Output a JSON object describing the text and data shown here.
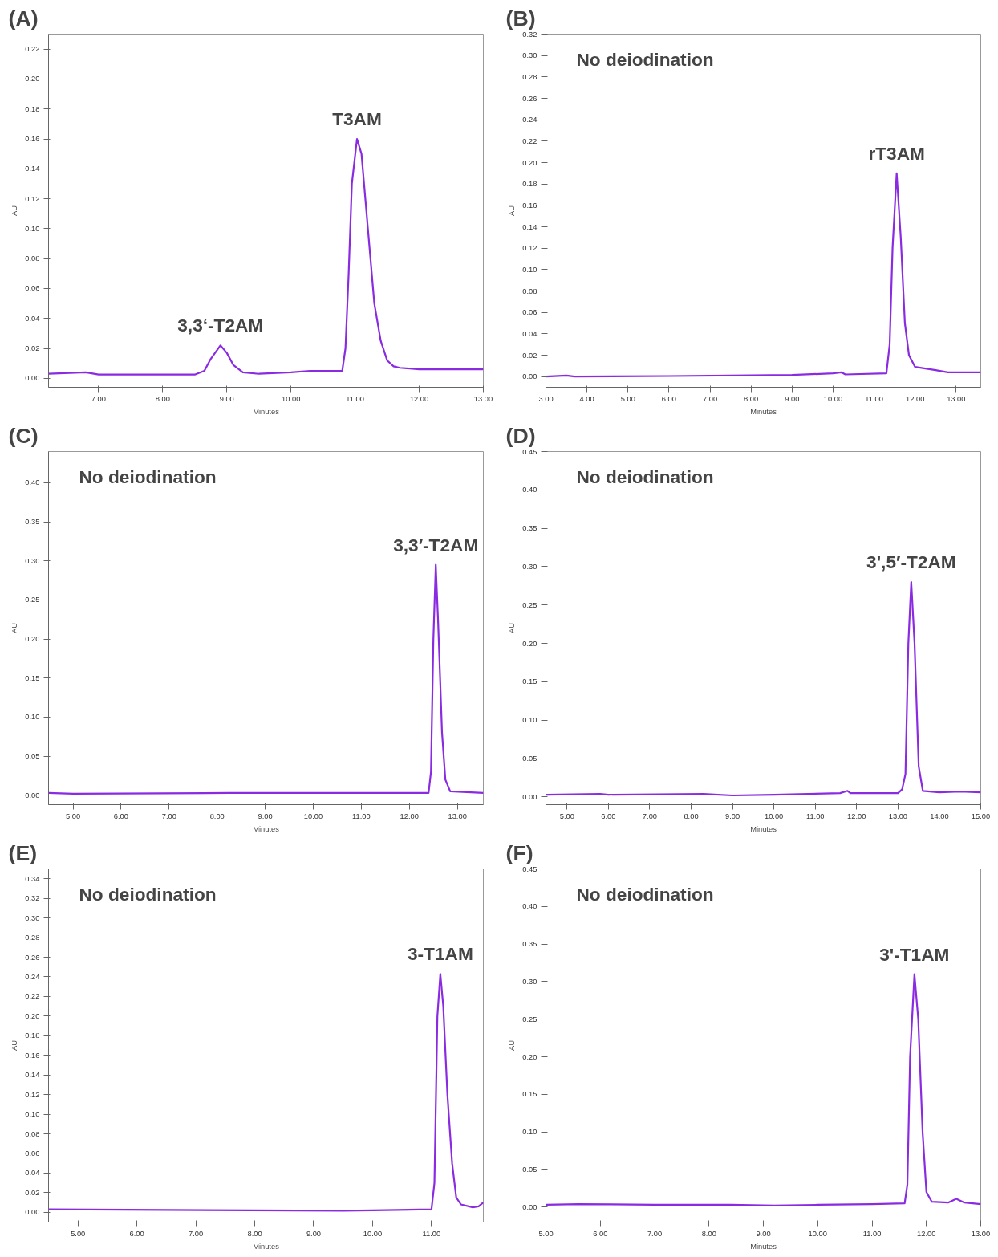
{
  "chart_data": [
    {
      "type": "line",
      "title": "(A)",
      "xlabel": "Minutes",
      "ylabel": "AU",
      "color": "#8a2be2",
      "grid": false,
      "xlim": [
        6.22,
        13.0
      ],
      "ylim": [
        -0.006,
        0.23
      ],
      "xticks": [
        {
          "value": 7,
          "label": "7.00"
        },
        {
          "value": 8,
          "label": "8.00"
        },
        {
          "value": 9,
          "label": "9.00"
        },
        {
          "value": 10,
          "label": "10.00"
        },
        {
          "value": 11,
          "label": "11.00"
        },
        {
          "value": 12,
          "label": "12.00"
        },
        {
          "value": 13,
          "label": "13.00"
        }
      ],
      "yticks": [
        {
          "value": 0,
          "label": "0.00"
        },
        {
          "value": 0.02,
          "label": "0.02"
        },
        {
          "value": 0.04,
          "label": "0.04"
        },
        {
          "value": 0.06,
          "label": "0.06"
        },
        {
          "value": 0.08,
          "label": "0.08"
        },
        {
          "value": 0.1,
          "label": "0.10"
        },
        {
          "value": 0.12,
          "label": "0.12"
        },
        {
          "value": 0.14,
          "label": "0.14"
        },
        {
          "value": 0.16,
          "label": "0.16"
        },
        {
          "value": 0.18,
          "label": "0.18"
        },
        {
          "value": 0.2,
          "label": "0.20"
        },
        {
          "value": 0.22,
          "label": "0.22"
        }
      ],
      "x": [
        6.22,
        6.8,
        7.0,
        8.5,
        8.65,
        8.75,
        8.9,
        9.0,
        9.1,
        9.25,
        9.5,
        10.0,
        10.3,
        10.8,
        10.85,
        10.9,
        10.95,
        11.03,
        11.1,
        11.2,
        11.3,
        11.4,
        11.5,
        11.6,
        11.7,
        12.0,
        13.0
      ],
      "values": [
        0.003,
        0.004,
        0.0025,
        0.0025,
        0.005,
        0.013,
        0.022,
        0.017,
        0.009,
        0.004,
        0.003,
        0.004,
        0.005,
        0.005,
        0.02,
        0.07,
        0.13,
        0.16,
        0.15,
        0.1,
        0.05,
        0.025,
        0.012,
        0.008,
        0.007,
        0.006,
        0.006
      ],
      "annotations": [
        {
          "text": "3,3‘-T2AM",
          "x": 8.9,
          "y": 0.022
        },
        {
          "text": "T3AM",
          "x": 11.03,
          "y": 0.16
        }
      ]
    },
    {
      "type": "line",
      "title": "(B)",
      "xlabel": "Minutes",
      "ylabel": "AU",
      "color": "#8a2be2",
      "grid": false,
      "xlim": [
        3.0,
        13.6
      ],
      "ylim": [
        -0.01,
        0.32
      ],
      "xticks": [
        {
          "value": 3,
          "label": "3.00"
        },
        {
          "value": 4,
          "label": "4.00"
        },
        {
          "value": 5,
          "label": "5.00"
        },
        {
          "value": 6,
          "label": "6.00"
        },
        {
          "value": 7,
          "label": "7.00"
        },
        {
          "value": 8,
          "label": "8.00"
        },
        {
          "value": 9,
          "label": "9.00"
        },
        {
          "value": 10,
          "label": "10.00"
        },
        {
          "value": 11,
          "label": "11.00"
        },
        {
          "value": 12,
          "label": "12.00"
        },
        {
          "value": 13,
          "label": "13.00"
        }
      ],
      "yticks": [
        {
          "value": 0,
          "label": "0.00"
        },
        {
          "value": 0.02,
          "label": "0.02"
        },
        {
          "value": 0.04,
          "label": "0.04"
        },
        {
          "value": 0.06,
          "label": "0.06"
        },
        {
          "value": 0.08,
          "label": "0.08"
        },
        {
          "value": 0.1,
          "label": "0.10"
        },
        {
          "value": 0.12,
          "label": "0.12"
        },
        {
          "value": 0.14,
          "label": "0.14"
        },
        {
          "value": 0.16,
          "label": "0.16"
        },
        {
          "value": 0.18,
          "label": "0.18"
        },
        {
          "value": 0.2,
          "label": "0.20"
        },
        {
          "value": 0.22,
          "label": "0.22"
        },
        {
          "value": 0.24,
          "label": "0.24"
        },
        {
          "value": 0.26,
          "label": "0.26"
        },
        {
          "value": 0.28,
          "label": "0.28"
        },
        {
          "value": 0.3,
          "label": "0.30"
        },
        {
          "value": 0.32,
          "label": "0.32"
        }
      ],
      "x": [
        3.0,
        3.5,
        3.7,
        6.0,
        9.0,
        10.0,
        10.2,
        10.3,
        11.3,
        11.38,
        11.45,
        11.55,
        11.65,
        11.75,
        11.85,
        12.0,
        12.5,
        12.8,
        13.6
      ],
      "values": [
        0.0,
        0.001,
        0.0,
        0.0005,
        0.0015,
        0.003,
        0.004,
        0.002,
        0.003,
        0.03,
        0.12,
        0.19,
        0.13,
        0.05,
        0.02,
        0.009,
        0.006,
        0.004,
        0.004
      ],
      "annotations": [
        "No deiodination",
        {
          "text": "rT3AM",
          "x": 11.55,
          "y": 0.19
        }
      ]
    },
    {
      "type": "line",
      "title": "(C)",
      "xlabel": "Minutes",
      "ylabel": "AU",
      "color": "#8a2be2",
      "grid": false,
      "xlim": [
        4.49,
        13.54
      ],
      "ylim": [
        -0.012,
        0.44
      ],
      "xticks": [
        {
          "value": 5,
          "label": "5.00"
        },
        {
          "value": 6,
          "label": "6.00"
        },
        {
          "value": 7,
          "label": "7.00"
        },
        {
          "value": 8,
          "label": "8.00"
        },
        {
          "value": 9,
          "label": "9.00"
        },
        {
          "value": 10,
          "label": "10.00"
        },
        {
          "value": 11,
          "label": "11.00"
        },
        {
          "value": 12,
          "label": "12.00"
        },
        {
          "value": 13,
          "label": "13.00"
        }
      ],
      "yticks": [
        {
          "value": 0,
          "label": "0.00"
        },
        {
          "value": 0.05,
          "label": "0.05"
        },
        {
          "value": 0.1,
          "label": "0.10"
        },
        {
          "value": 0.15,
          "label": "0.15"
        },
        {
          "value": 0.2,
          "label": "0.20"
        },
        {
          "value": 0.25,
          "label": "0.25"
        },
        {
          "value": 0.3,
          "label": "0.30"
        },
        {
          "value": 0.35,
          "label": "0.35"
        },
        {
          "value": 0.4,
          "label": "0.40"
        }
      ],
      "x": [
        4.49,
        5.0,
        8.25,
        10.0,
        12.4,
        12.45,
        12.5,
        12.55,
        12.6,
        12.68,
        12.75,
        12.85,
        13.54
      ],
      "values": [
        0.003,
        0.002,
        0.003,
        0.003,
        0.003,
        0.03,
        0.2,
        0.295,
        0.22,
        0.08,
        0.02,
        0.005,
        0.003
      ],
      "annotations": [
        "No deiodination",
        {
          "text": "3,3′-T2AM",
          "x": 12.55,
          "y": 0.295
        }
      ]
    },
    {
      "type": "line",
      "title": "(D)",
      "xlabel": "Minutes",
      "ylabel": "AU",
      "color": "#8a2be2",
      "grid": false,
      "xlim": [
        4.49,
        15.0
      ],
      "ylim": [
        -0.01,
        0.45
      ],
      "xticks": [
        {
          "value": 5,
          "label": "5.00"
        },
        {
          "value": 6,
          "label": "6.00"
        },
        {
          "value": 7,
          "label": "7.00"
        },
        {
          "value": 8,
          "label": "8.00"
        },
        {
          "value": 9,
          "label": "9.00"
        },
        {
          "value": 10,
          "label": "10.00"
        },
        {
          "value": 11,
          "label": "11.00"
        },
        {
          "value": 12,
          "label": "12.00"
        },
        {
          "value": 13,
          "label": "13.00"
        },
        {
          "value": 14,
          "label": "14.00"
        },
        {
          "value": 15,
          "label": "15.00"
        }
      ],
      "yticks": [
        {
          "value": 0,
          "label": "0.00"
        },
        {
          "value": 0.05,
          "label": "0.05"
        },
        {
          "value": 0.1,
          "label": "0.10"
        },
        {
          "value": 0.15,
          "label": "0.15"
        },
        {
          "value": 0.2,
          "label": "0.20"
        },
        {
          "value": 0.25,
          "label": "0.25"
        },
        {
          "value": 0.3,
          "label": "0.30"
        },
        {
          "value": 0.35,
          "label": "0.35"
        },
        {
          "value": 0.4,
          "label": "0.40"
        },
        {
          "value": 0.45,
          "label": "0.45"
        }
      ],
      "x": [
        4.49,
        5.8,
        6.0,
        8.3,
        9.0,
        10.0,
        11.6,
        11.78,
        11.85,
        13.0,
        13.1,
        13.18,
        13.25,
        13.32,
        13.4,
        13.5,
        13.6,
        14.0,
        14.5,
        15.0
      ],
      "values": [
        0.003,
        0.004,
        0.003,
        0.004,
        0.002,
        0.003,
        0.005,
        0.008,
        0.005,
        0.005,
        0.01,
        0.03,
        0.2,
        0.28,
        0.2,
        0.04,
        0.008,
        0.006,
        0.007,
        0.006
      ],
      "annotations": [
        "No deiodination",
        {
          "text": "3',5′-T2AM",
          "x": 13.32,
          "y": 0.28
        }
      ]
    },
    {
      "type": "line",
      "title": "(E)",
      "xlabel": "Minutes",
      "ylabel": "AU",
      "color": "#8a2be2",
      "grid": false,
      "xlim": [
        4.5,
        11.88
      ],
      "ylim": [
        -0.01,
        0.35
      ],
      "xticks": [
        {
          "value": 5,
          "label": "5.00"
        },
        {
          "value": 6,
          "label": "6.00"
        },
        {
          "value": 7,
          "label": "7.00"
        },
        {
          "value": 8,
          "label": "8.00"
        },
        {
          "value": 9,
          "label": "9.00"
        },
        {
          "value": 10,
          "label": "10.00"
        },
        {
          "value": 11,
          "label": "11.00"
        }
      ],
      "yticks": [
        {
          "value": 0,
          "label": "0.00"
        },
        {
          "value": 0.02,
          "label": "0.02"
        },
        {
          "value": 0.04,
          "label": "0.04"
        },
        {
          "value": 0.06,
          "label": "0.06"
        },
        {
          "value": 0.08,
          "label": "0.08"
        },
        {
          "value": 0.1,
          "label": "0.10"
        },
        {
          "value": 0.12,
          "label": "0.12"
        },
        {
          "value": 0.14,
          "label": "0.14"
        },
        {
          "value": 0.16,
          "label": "0.16"
        },
        {
          "value": 0.18,
          "label": "0.18"
        },
        {
          "value": 0.2,
          "label": "0.20"
        },
        {
          "value": 0.22,
          "label": "0.22"
        },
        {
          "value": 0.24,
          "label": "0.24"
        },
        {
          "value": 0.26,
          "label": "0.26"
        },
        {
          "value": 0.28,
          "label": "0.28"
        },
        {
          "value": 0.3,
          "label": "0.30"
        },
        {
          "value": 0.32,
          "label": "0.32"
        },
        {
          "value": 0.34,
          "label": "0.34"
        }
      ],
      "x": [
        4.5,
        9.5,
        10.0,
        11.0,
        11.05,
        11.1,
        11.15,
        11.2,
        11.27,
        11.35,
        11.42,
        11.5,
        11.7,
        11.8,
        11.88
      ],
      "values": [
        0.003,
        0.0015,
        0.002,
        0.003,
        0.03,
        0.2,
        0.243,
        0.21,
        0.12,
        0.05,
        0.015,
        0.008,
        0.005,
        0.006,
        0.01
      ],
      "annotations": [
        "No deiodination",
        {
          "text": "3-T1AM",
          "x": 11.15,
          "y": 0.243
        }
      ]
    },
    {
      "type": "line",
      "title": "(F)",
      "xlabel": "Minutes",
      "ylabel": "AU",
      "color": "#8a2be2",
      "grid": false,
      "xlim": [
        5.0,
        13.0
      ],
      "ylim": [
        -0.02,
        0.45
      ],
      "xticks": [
        {
          "value": 5,
          "label": "5.00"
        },
        {
          "value": 6,
          "label": "6.00"
        },
        {
          "value": 7,
          "label": "7.00"
        },
        {
          "value": 8,
          "label": "8.00"
        },
        {
          "value": 9,
          "label": "9.00"
        },
        {
          "value": 10,
          "label": "10.00"
        },
        {
          "value": 11,
          "label": "11.00"
        },
        {
          "value": 12,
          "label": "12.00"
        },
        {
          "value": 13,
          "label": "13.00"
        }
      ],
      "yticks": [
        {
          "value": 0,
          "label": "0.00"
        },
        {
          "value": 0.05,
          "label": "0.05"
        },
        {
          "value": 0.1,
          "label": "0.10"
        },
        {
          "value": 0.15,
          "label": "0.15"
        },
        {
          "value": 0.2,
          "label": "0.20"
        },
        {
          "value": 0.25,
          "label": "0.25"
        },
        {
          "value": 0.3,
          "label": "0.30"
        },
        {
          "value": 0.35,
          "label": "0.35"
        },
        {
          "value": 0.4,
          "label": "0.40"
        },
        {
          "value": 0.45,
          "label": "0.45"
        }
      ],
      "x": [
        5.0,
        5.6,
        7.0,
        8.4,
        9.2,
        10.0,
        11.0,
        11.6,
        11.65,
        11.7,
        11.78,
        11.85,
        11.93,
        12.0,
        12.1,
        12.4,
        12.55,
        12.7,
        13.0
      ],
      "values": [
        0.003,
        0.004,
        0.003,
        0.003,
        0.002,
        0.003,
        0.004,
        0.005,
        0.03,
        0.2,
        0.31,
        0.25,
        0.1,
        0.02,
        0.007,
        0.006,
        0.011,
        0.006,
        0.004
      ],
      "annotations": [
        "No deiodination",
        {
          "text": "3'-T1AM",
          "x": 11.78,
          "y": 0.31
        }
      ]
    }
  ]
}
